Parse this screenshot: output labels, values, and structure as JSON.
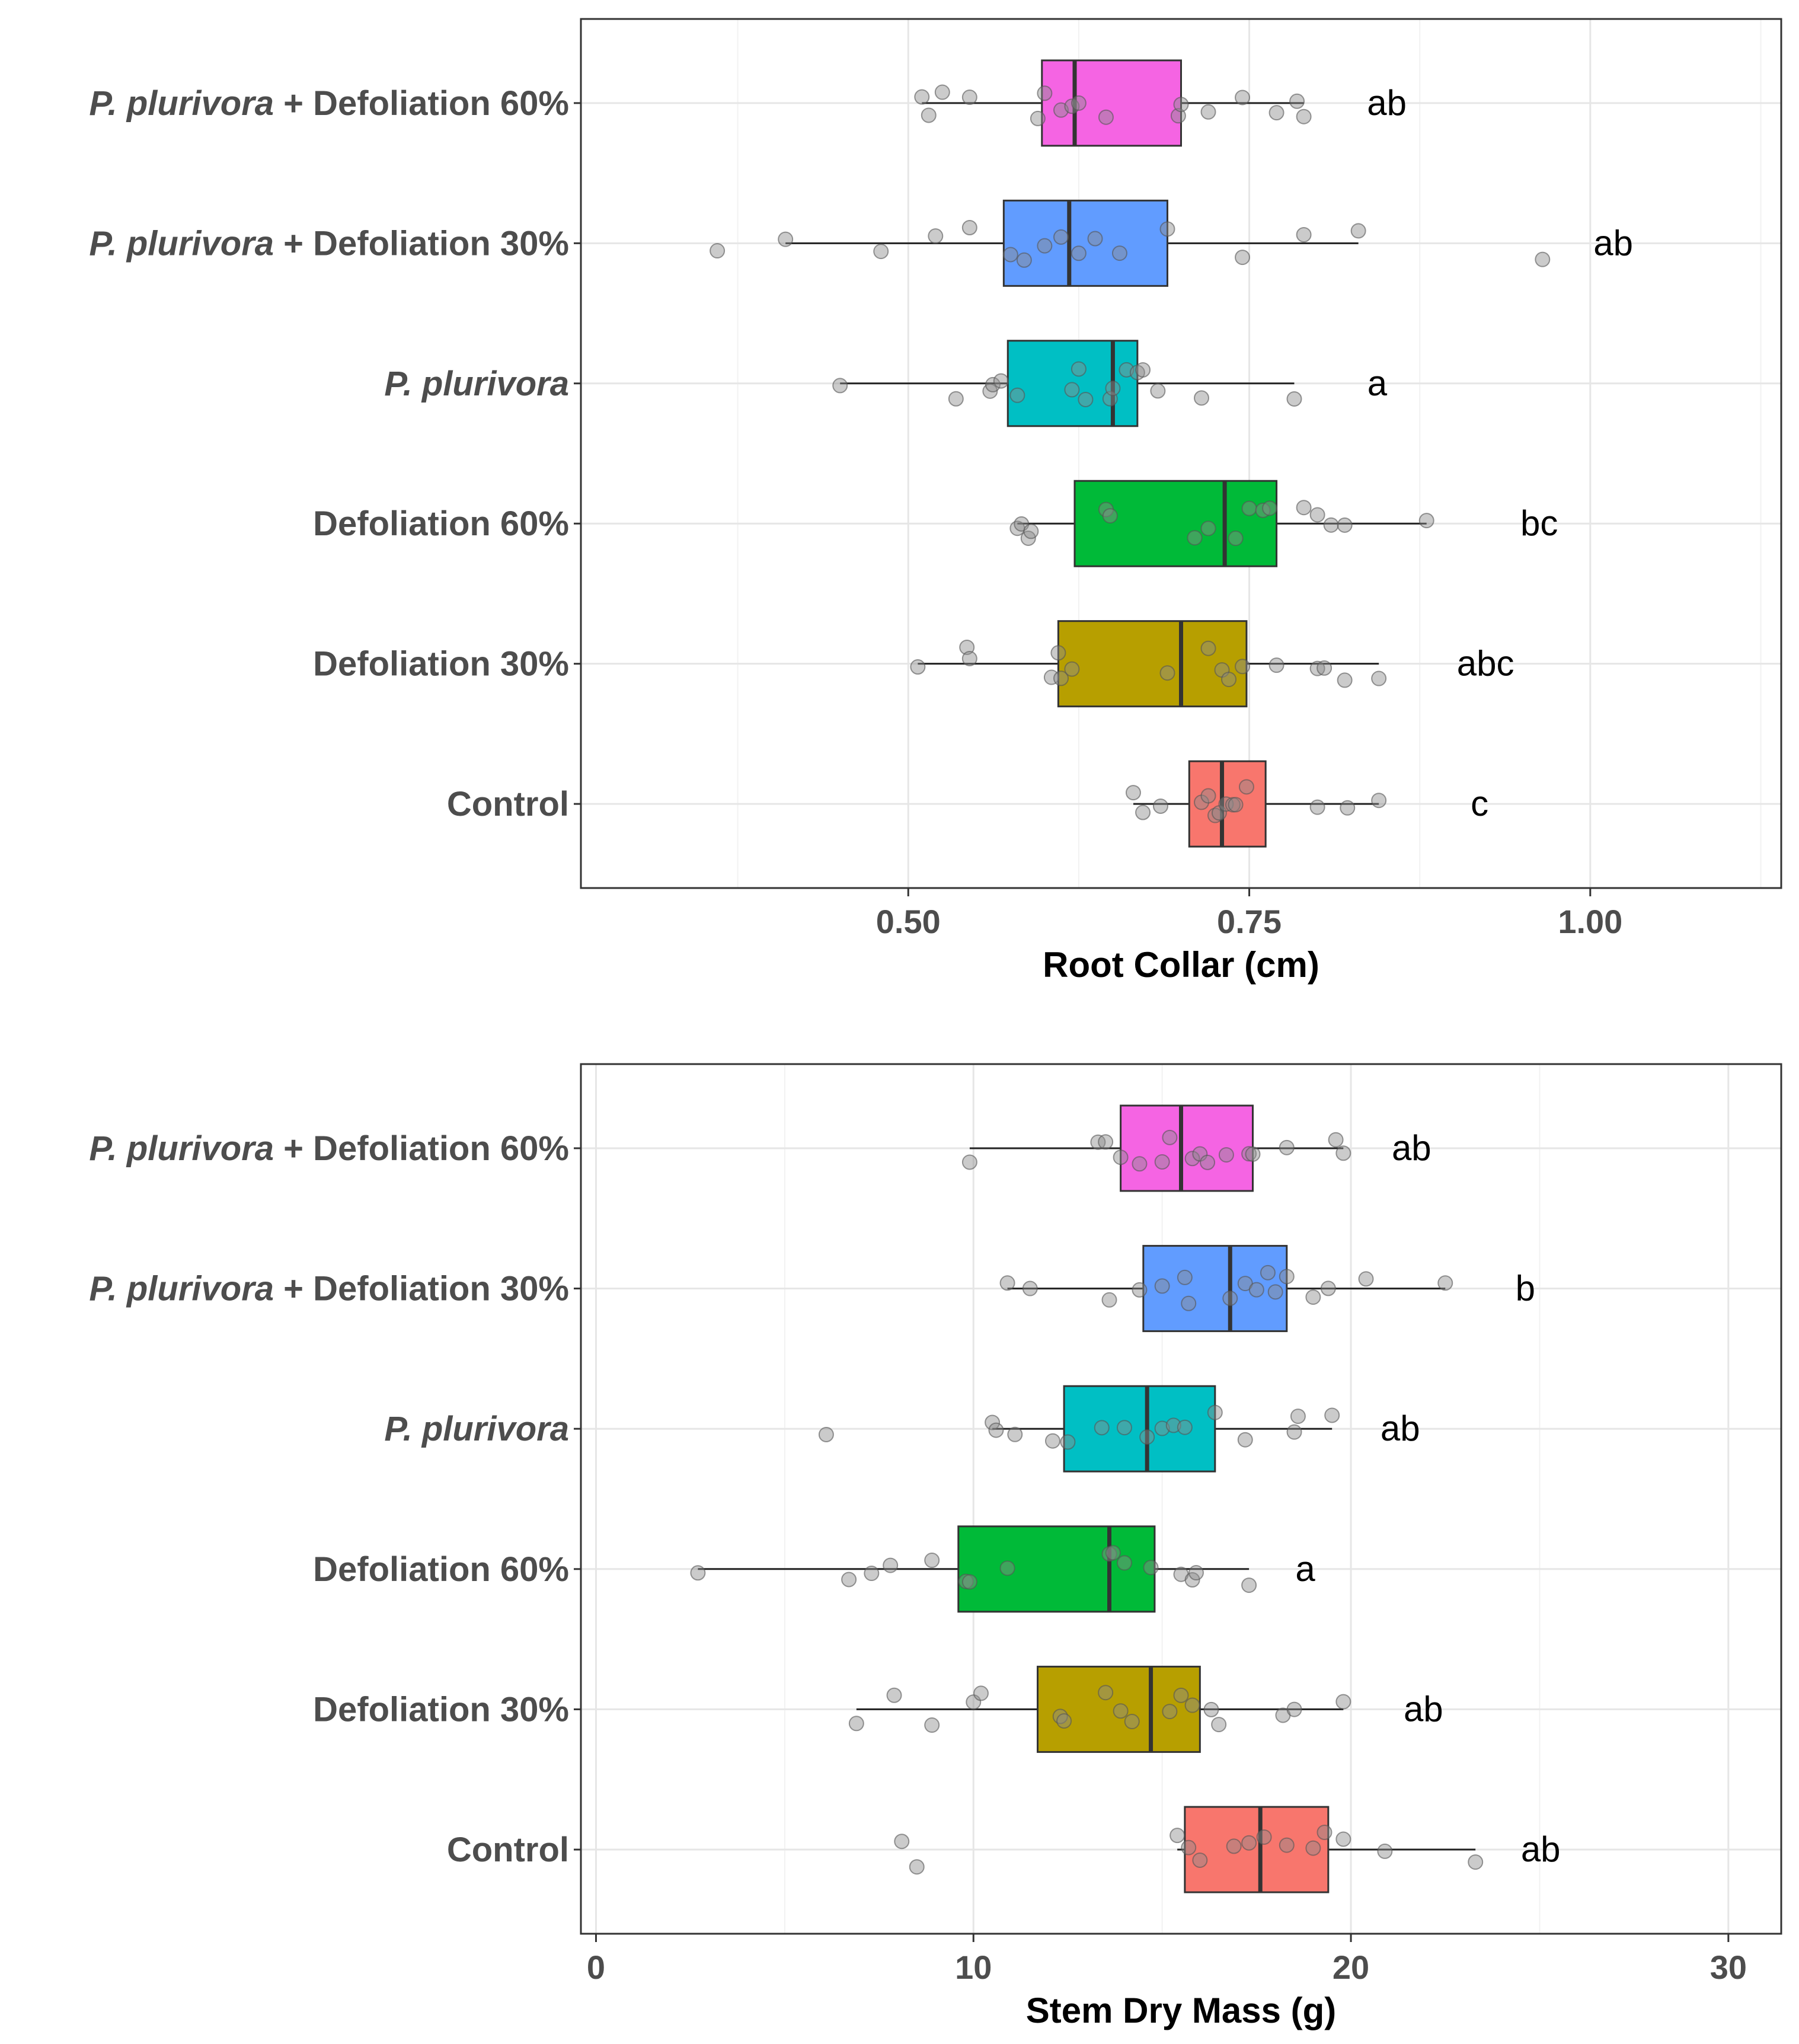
{
  "chart_data": [
    {
      "type": "boxplot",
      "orientation": "horizontal",
      "xlabel": "Root Collar (cm)",
      "xlim": [
        0.26,
        1.14
      ],
      "xticks": [
        0.5,
        0.75,
        1.0
      ],
      "xtick_labels": [
        "0.50",
        "0.75",
        "1.00"
      ],
      "grid": true,
      "categories": [
        {
          "name": "Control",
          "italic": "",
          "rest": "Control",
          "color": "#F8766D",
          "q1": 0.706,
          "median": 0.73,
          "q3": 0.762,
          "wlo": 0.665,
          "whi": 0.845,
          "letter": "c",
          "points": [
            0.665,
            0.672,
            0.685,
            0.715,
            0.72,
            0.725,
            0.728,
            0.733,
            0.738,
            0.74,
            0.748,
            0.8,
            0.822,
            0.845
          ]
        },
        {
          "name": "Defoliation 30%",
          "italic": "",
          "rest": "Defoliation 30%",
          "color": "#B79F00",
          "q1": 0.61,
          "median": 0.7,
          "q3": 0.748,
          "wlo": 0.507,
          "whi": 0.845,
          "letter": "abc",
          "points": [
            0.507,
            0.543,
            0.545,
            0.605,
            0.61,
            0.612,
            0.62,
            0.69,
            0.72,
            0.73,
            0.735,
            0.745,
            0.77,
            0.8,
            0.805,
            0.82,
            0.845
          ]
        },
        {
          "name": "Defoliation 60%",
          "italic": "",
          "rest": "Defoliation 60%",
          "color": "#00BA38",
          "q1": 0.622,
          "median": 0.732,
          "q3": 0.77,
          "wlo": 0.58,
          "whi": 0.88,
          "letter": "bc",
          "points": [
            0.58,
            0.583,
            0.588,
            0.59,
            0.645,
            0.648,
            0.71,
            0.72,
            0.74,
            0.75,
            0.76,
            0.765,
            0.79,
            0.8,
            0.81,
            0.82,
            0.88
          ]
        },
        {
          "name": "P. plurivora",
          "italic": "P. plurivora",
          "rest": "",
          "color": "#00BFC4",
          "q1": 0.573,
          "median": 0.65,
          "q3": 0.668,
          "wlo": 0.45,
          "whi": 0.783,
          "letter": "a",
          "points": [
            0.45,
            0.535,
            0.56,
            0.562,
            0.568,
            0.58,
            0.62,
            0.625,
            0.63,
            0.648,
            0.65,
            0.66,
            0.668,
            0.672,
            0.683,
            0.715,
            0.783
          ]
        },
        {
          "name": "P. plurivora + Defoliation 30%",
          "italic": "P. plurivora",
          "rest": " + Defoliation 30%",
          "color": "#619CFF",
          "q1": 0.57,
          "median": 0.618,
          "q3": 0.69,
          "wlo": 0.41,
          "whi": 0.83,
          "letter": "ab",
          "points": [
            0.36,
            0.41,
            0.48,
            0.52,
            0.545,
            0.575,
            0.585,
            0.6,
            0.612,
            0.625,
            0.637,
            0.655,
            0.69,
            0.745,
            0.79,
            0.83,
            0.965
          ]
        },
        {
          "name": "P. plurivora + Defoliation 60%",
          "italic": "P. plurivora",
          "rest": " + Defoliation 60%",
          "color": "#F564E3",
          "q1": 0.598,
          "median": 0.622,
          "q3": 0.7,
          "wlo": 0.51,
          "whi": 0.79,
          "letter": "ab",
          "points": [
            0.51,
            0.515,
            0.525,
            0.545,
            0.595,
            0.6,
            0.612,
            0.62,
            0.625,
            0.645,
            0.698,
            0.7,
            0.72,
            0.745,
            0.77,
            0.785,
            0.79
          ]
        }
      ]
    },
    {
      "type": "boxplot",
      "orientation": "horizontal",
      "xlabel": "Stem Dry Mass (g)",
      "xlim": [
        -0.4,
        31.4
      ],
      "xticks": [
        0,
        10,
        20,
        30
      ],
      "xtick_labels": [
        "0",
        "10",
        "20",
        "30"
      ],
      "grid": true,
      "categories": [
        {
          "name": "Control",
          "italic": "",
          "rest": "Control",
          "color": "#F8766D",
          "q1": 15.6,
          "median": 17.6,
          "q3": 19.4,
          "wlo": 15.4,
          "whi": 23.3,
          "letter": "ab",
          "points": [
            8.1,
            8.5,
            15.4,
            15.7,
            16.0,
            16.9,
            17.3,
            17.7,
            18.3,
            19.0,
            19.3,
            19.8,
            20.9,
            23.3
          ]
        },
        {
          "name": "Defoliation 30%",
          "italic": "",
          "rest": "Defoliation 30%",
          "color": "#B79F00",
          "q1": 11.7,
          "median": 14.7,
          "q3": 16.0,
          "wlo": 6.9,
          "whi": 19.8,
          "letter": "ab",
          "points": [
            6.9,
            7.9,
            8.9,
            10.0,
            10.2,
            12.3,
            12.4,
            13.5,
            13.9,
            14.2,
            15.2,
            15.5,
            15.8,
            16.3,
            16.5,
            18.2,
            18.5,
            19.8
          ]
        },
        {
          "name": "Defoliation 60%",
          "italic": "",
          "rest": "Defoliation 60%",
          "color": "#00BA38",
          "q1": 9.6,
          "median": 13.6,
          "q3": 14.8,
          "wlo": 2.7,
          "whi": 17.3,
          "letter": "a",
          "points": [
            2.7,
            6.7,
            7.3,
            7.8,
            8.9,
            9.8,
            9.9,
            10.9,
            13.6,
            13.7,
            14.0,
            14.7,
            15.5,
            15.8,
            15.9,
            17.3
          ]
        },
        {
          "name": "P. plurivora",
          "italic": "P. plurivora",
          "rest": "",
          "color": "#00BFC4",
          "q1": 12.4,
          "median": 14.6,
          "q3": 16.4,
          "wlo": 10.5,
          "whi": 19.5,
          "letter": "ab",
          "points": [
            6.1,
            10.5,
            10.6,
            11.1,
            12.1,
            12.5,
            13.4,
            14.0,
            14.6,
            15.0,
            15.3,
            15.6,
            16.4,
            17.2,
            18.5,
            18.6,
            19.5
          ]
        },
        {
          "name": "P. plurivora + Defoliation 30%",
          "italic": "P. plurivora",
          "rest": " + Defoliation 30%",
          "color": "#619CFF",
          "q1": 14.5,
          "median": 16.8,
          "q3": 18.3,
          "wlo": 10.9,
          "whi": 22.5,
          "letter": "b",
          "points": [
            10.9,
            11.5,
            13.6,
            14.4,
            15.0,
            15.6,
            15.7,
            16.8,
            17.2,
            17.5,
            17.8,
            18.0,
            18.3,
            19.0,
            19.4,
            20.4,
            22.5
          ]
        },
        {
          "name": "P. plurivora + Defoliation 60%",
          "italic": "P. plurivora",
          "rest": " + Defoliation 60%",
          "color": "#F564E3",
          "q1": 13.9,
          "median": 15.5,
          "q3": 17.4,
          "wlo": 9.9,
          "whi": 19.8,
          "letter": "ab",
          "points": [
            9.9,
            13.3,
            13.5,
            13.9,
            14.4,
            15.0,
            15.2,
            15.8,
            16.0,
            16.2,
            16.7,
            17.3,
            17.4,
            18.3,
            19.6,
            19.8
          ]
        }
      ]
    }
  ]
}
